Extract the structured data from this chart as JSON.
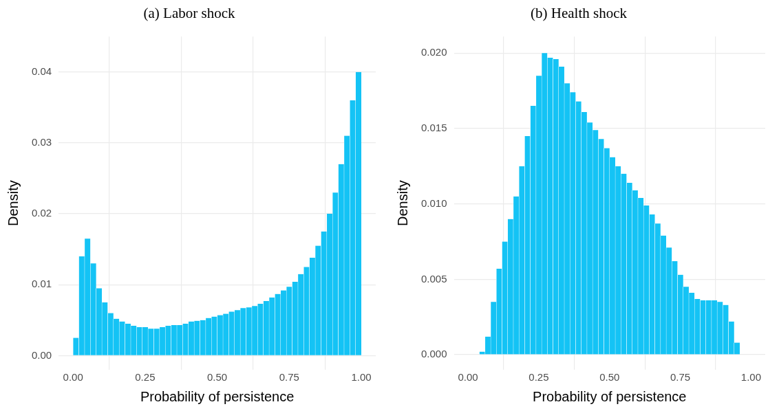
{
  "chart_data": [
    {
      "type": "histogram",
      "title": "(a) Labor shock",
      "xlabel": "Probability of persistence",
      "ylabel": "Density",
      "color": "#14c3f5",
      "bins": [
        0.0,
        0.02,
        0.04,
        0.06,
        0.08,
        0.1,
        0.12,
        0.14,
        0.16,
        0.18,
        0.2,
        0.22,
        0.24,
        0.26,
        0.28,
        0.3,
        0.32,
        0.34,
        0.36,
        0.38,
        0.4,
        0.42,
        0.44,
        0.46,
        0.48,
        0.5,
        0.52,
        0.54,
        0.56,
        0.58,
        0.6,
        0.62,
        0.64,
        0.66,
        0.68,
        0.7,
        0.72,
        0.74,
        0.76,
        0.78,
        0.8,
        0.82,
        0.84,
        0.86,
        0.88,
        0.9,
        0.92,
        0.94,
        0.96,
        0.98,
        1.0
      ],
      "values": [
        0.0025,
        0.014,
        0.0165,
        0.013,
        0.0095,
        0.0075,
        0.006,
        0.0052,
        0.0048,
        0.0045,
        0.0042,
        0.004,
        0.004,
        0.0038,
        0.0038,
        0.004,
        0.0042,
        0.0043,
        0.0043,
        0.0045,
        0.0048,
        0.0049,
        0.005,
        0.0053,
        0.0055,
        0.0057,
        0.0059,
        0.0062,
        0.0064,
        0.0067,
        0.0068,
        0.007,
        0.0073,
        0.0077,
        0.0082,
        0.0087,
        0.0092,
        0.0097,
        0.0104,
        0.0115,
        0.0125,
        0.0138,
        0.0155,
        0.0175,
        0.02,
        0.023,
        0.027,
        0.031,
        0.036,
        0.04
      ],
      "xlim": [
        -0.05,
        1.05
      ],
      "xticks": [
        {
          "value": 0,
          "label": "0.00"
        },
        {
          "value": 0.25,
          "label": "0.25"
        },
        {
          "value": 0.5,
          "label": "0.50"
        },
        {
          "value": 0.75,
          "label": "0.75"
        },
        {
          "value": 1,
          "label": "1.00"
        }
      ],
      "ylim": [
        -0.002,
        0.045
      ],
      "yticks": [
        {
          "value": 0,
          "label": "0.00"
        },
        {
          "value": 0.01,
          "label": "0.01"
        },
        {
          "value": 0.02,
          "label": "0.02"
        },
        {
          "value": 0.03,
          "label": "0.03"
        },
        {
          "value": 0.04,
          "label": "0.04"
        }
      ],
      "grid": true,
      "legend": false
    },
    {
      "type": "histogram",
      "title": "(b) Health shock",
      "xlabel": "Probability of persistence",
      "ylabel": "Density",
      "color": "#14c3f5",
      "bins": [
        0.04,
        0.06,
        0.08,
        0.1,
        0.12,
        0.14,
        0.16,
        0.18,
        0.2,
        0.22,
        0.24,
        0.26,
        0.28,
        0.3,
        0.32,
        0.34,
        0.36,
        0.38,
        0.4,
        0.42,
        0.44,
        0.46,
        0.48,
        0.5,
        0.52,
        0.54,
        0.56,
        0.58,
        0.6,
        0.62,
        0.64,
        0.66,
        0.68,
        0.7,
        0.72,
        0.74,
        0.76,
        0.78,
        0.8,
        0.82,
        0.84,
        0.86,
        0.88,
        0.9,
        0.92,
        0.94,
        0.96
      ],
      "values": [
        0.0002,
        0.0012,
        0.0035,
        0.0057,
        0.0075,
        0.009,
        0.0105,
        0.0125,
        0.0145,
        0.0165,
        0.0185,
        0.02,
        0.0197,
        0.0196,
        0.0191,
        0.018,
        0.0174,
        0.0168,
        0.0161,
        0.0154,
        0.0149,
        0.0143,
        0.0137,
        0.0131,
        0.0125,
        0.012,
        0.0114,
        0.0109,
        0.0104,
        0.0099,
        0.0093,
        0.0087,
        0.0079,
        0.0071,
        0.0062,
        0.0053,
        0.0045,
        0.0041,
        0.0037,
        0.0036,
        0.0036,
        0.0036,
        0.0035,
        0.0033,
        0.0022,
        0.0008
      ],
      "xlim": [
        -0.05,
        1.05
      ],
      "xticks": [
        {
          "value": 0,
          "label": "0.00"
        },
        {
          "value": 0.25,
          "label": "0.25"
        },
        {
          "value": 0.5,
          "label": "0.50"
        },
        {
          "value": 0.75,
          "label": "0.75"
        },
        {
          "value": 1,
          "label": "1.00"
        }
      ],
      "ylim": [
        -0.001,
        0.0211
      ],
      "yticks": [
        {
          "value": 0,
          "label": "0.000"
        },
        {
          "value": 0.005,
          "label": "0.005"
        },
        {
          "value": 0.01,
          "label": "0.010"
        },
        {
          "value": 0.015,
          "label": "0.015"
        },
        {
          "value": 0.02,
          "label": "0.020"
        }
      ],
      "grid": true,
      "legend": false
    }
  ]
}
